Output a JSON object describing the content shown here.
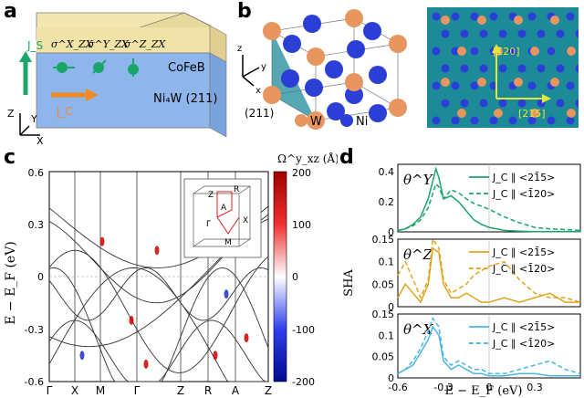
{
  "panel_labels": {
    "a": "a",
    "b": "b",
    "c": "c",
    "d": "d"
  },
  "panel_a": {
    "top_layer": "CoFeB",
    "bottom_layer": "Ni₄W (211)",
    "spin_labels": [
      "σ^X_ZX",
      "σ^Y_ZX",
      "σ^Z_ZX"
    ],
    "spin_current": "J_S",
    "charge_current": "J_C",
    "axes": {
      "z": "Z",
      "y": "Y",
      "x": "X"
    }
  },
  "panel_b": {
    "plane_label": "(211)",
    "legend": [
      {
        "label": "W",
        "color": "#e8955f"
      },
      {
        "label": "Ni",
        "color": "#2b3fd6"
      }
    ],
    "axes": {
      "z": "z",
      "y": "y",
      "x": "x"
    },
    "directions": [
      "[1̄20]",
      "[21̄5]"
    ],
    "colors": {
      "surface": "#1d8a98",
      "arrow": "#e0e83a"
    }
  },
  "panel_c": {
    "ylabel": "E − E_F (eV)",
    "ylim": [
      -0.6,
      0.6
    ],
    "yticks": [
      "0.6",
      "0.3",
      "0",
      "-0.3",
      "-0.6"
    ],
    "kpoints": [
      "Γ",
      "X",
      "M",
      "Γ",
      "Z",
      "R",
      "A",
      "Z"
    ],
    "colorbar_title": "Ω^y_xz (Å)",
    "colorbar_ticks": [
      "200",
      "100",
      "0",
      "-100",
      "-200"
    ],
    "colorbar_range": [
      -200,
      200
    ],
    "bz_labels": [
      "Z",
      "R",
      "A",
      "Γ",
      "M",
      "X"
    ]
  },
  "chart_data": [
    {
      "type": "line",
      "title": "θ^Y",
      "xlim": [
        -0.6,
        0.6
      ],
      "ylim": [
        0,
        0.45
      ],
      "yticks": [
        "0.4",
        "0.2",
        "0"
      ],
      "color": "#1aa56b",
      "series": [
        {
          "name": "J_C ∥ <21̄5>",
          "style": "solid",
          "x": [
            -0.6,
            -0.55,
            -0.5,
            -0.45,
            -0.4,
            -0.35,
            -0.33,
            -0.3,
            -0.25,
            -0.2,
            -0.15,
            -0.1,
            -0.05,
            0,
            0.1,
            0.2,
            0.3,
            0.4,
            0.5,
            0.6
          ],
          "y": [
            0.01,
            0.02,
            0.05,
            0.1,
            0.22,
            0.42,
            0.36,
            0.22,
            0.24,
            0.2,
            0.14,
            0.08,
            0.05,
            0.03,
            0.01,
            0.005,
            0.002,
            0.001,
            0.001,
            0.001
          ]
        },
        {
          "name": "J_C ∥ <1̄20>",
          "style": "dashed",
          "x": [
            -0.6,
            -0.55,
            -0.5,
            -0.45,
            -0.4,
            -0.35,
            -0.33,
            -0.3,
            -0.25,
            -0.2,
            -0.15,
            -0.1,
            -0.05,
            0,
            0.1,
            0.2,
            0.3,
            0.4,
            0.5,
            0.6
          ],
          "y": [
            0.01,
            0.02,
            0.04,
            0.08,
            0.16,
            0.32,
            0.3,
            0.22,
            0.28,
            0.26,
            0.22,
            0.19,
            0.17,
            0.15,
            0.1,
            0.06,
            0.03,
            0.02,
            0.015,
            0.01
          ]
        }
      ]
    },
    {
      "type": "line",
      "title": "θ^Z",
      "xlim": [
        -0.6,
        0.6
      ],
      "ylim": [
        0,
        0.15
      ],
      "yticks": [
        "0.15",
        "0.1",
        "0.05",
        "0"
      ],
      "color": "#e2a41c",
      "series": [
        {
          "name": "J_C ∥ <21̄5>",
          "style": "solid",
          "x": [
            -0.6,
            -0.55,
            -0.5,
            -0.45,
            -0.4,
            -0.37,
            -0.33,
            -0.3,
            -0.25,
            -0.2,
            -0.15,
            -0.1,
            -0.05,
            0,
            0.1,
            0.2,
            0.3,
            0.4,
            0.5,
            0.6
          ],
          "y": [
            0.02,
            0.05,
            0.03,
            0.01,
            0.05,
            0.13,
            0.12,
            0.05,
            0.02,
            0.02,
            0.03,
            0.02,
            0.01,
            0.01,
            0.02,
            0.01,
            0.02,
            0.03,
            0.01,
            0.01
          ]
        },
        {
          "name": "J_C ∥ <1̄20>",
          "style": "dashed",
          "x": [
            -0.6,
            -0.55,
            -0.5,
            -0.45,
            -0.4,
            -0.37,
            -0.33,
            -0.3,
            -0.25,
            -0.2,
            -0.15,
            -0.1,
            -0.05,
            0,
            0.1,
            0.2,
            0.3,
            0.4,
            0.5,
            0.6
          ],
          "y": [
            0.07,
            0.1,
            0.06,
            0.02,
            0.06,
            0.15,
            0.13,
            0.06,
            0.03,
            0.04,
            0.05,
            0.07,
            0.08,
            0.09,
            0.1,
            0.06,
            0.03,
            0.02,
            0.02,
            0.01
          ]
        }
      ]
    },
    {
      "type": "line",
      "title": "θ^X",
      "xlim": [
        -0.6,
        0.6
      ],
      "ylim": [
        0,
        0.15
      ],
      "yticks": [
        "0.15",
        "0.1",
        "0.05",
        "0"
      ],
      "xticks": [
        "-0.6",
        "-0.3",
        "0",
        "0.3"
      ],
      "xlabel": "E − E_F (eV)",
      "ylabel": "SHA",
      "color": "#4bb5e6",
      "series": [
        {
          "name": "J_C ∥ <21̄5>",
          "style": "solid",
          "x": [
            -0.6,
            -0.55,
            -0.5,
            -0.45,
            -0.4,
            -0.37,
            -0.33,
            -0.3,
            -0.25,
            -0.2,
            -0.15,
            -0.1,
            -0.05,
            0,
            0.1,
            0.2,
            0.3,
            0.4,
            0.5,
            0.6
          ],
          "y": [
            0.01,
            0.02,
            0.03,
            0.06,
            0.09,
            0.12,
            0.1,
            0.04,
            0.02,
            0.03,
            0.02,
            0.01,
            0.01,
            0.005,
            0.005,
            0.01,
            0.01,
            0.005,
            0.005,
            0.005
          ]
        },
        {
          "name": "J_C ∥ <1̄20>",
          "style": "dashed",
          "x": [
            -0.6,
            -0.55,
            -0.5,
            -0.45,
            -0.4,
            -0.37,
            -0.33,
            -0.3,
            -0.25,
            -0.2,
            -0.15,
            -0.1,
            -0.05,
            0,
            0.1,
            0.2,
            0.3,
            0.4,
            0.5,
            0.6
          ],
          "y": [
            0.01,
            0.02,
            0.04,
            0.07,
            0.11,
            0.14,
            0.12,
            0.05,
            0.03,
            0.04,
            0.03,
            0.02,
            0.02,
            0.01,
            0.01,
            0.02,
            0.03,
            0.04,
            0.02,
            0.01
          ]
        }
      ]
    }
  ]
}
